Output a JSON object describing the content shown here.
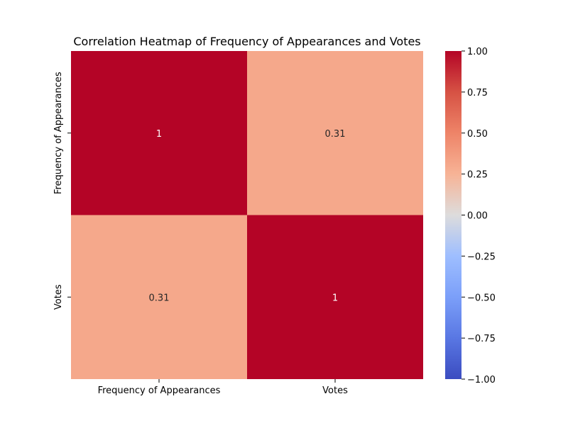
{
  "chart_data": {
    "type": "heatmap",
    "title": "Correlation Heatmap of Frequency of Appearances and Votes",
    "x_categories": [
      "Frequency of Appearances",
      "Votes"
    ],
    "y_categories": [
      "Frequency of Appearances",
      "Votes"
    ],
    "values": [
      [
        1.0,
        0.31
      ],
      [
        0.31,
        1.0
      ]
    ],
    "annotations": [
      [
        "1",
        "0.31"
      ],
      [
        "0.31",
        "1"
      ]
    ],
    "colorbar": {
      "colormap": "coolwarm",
      "vmin": -1.0,
      "vmax": 1.0,
      "ticks": [
        1.0,
        0.75,
        0.5,
        0.25,
        0.0,
        -0.25,
        -0.5,
        -0.75,
        -1.0
      ],
      "tick_labels": [
        "1.00",
        "0.75",
        "0.50",
        "0.25",
        "0.00",
        "−0.25",
        "−0.50",
        "−0.75",
        "−1.00"
      ]
    }
  }
}
